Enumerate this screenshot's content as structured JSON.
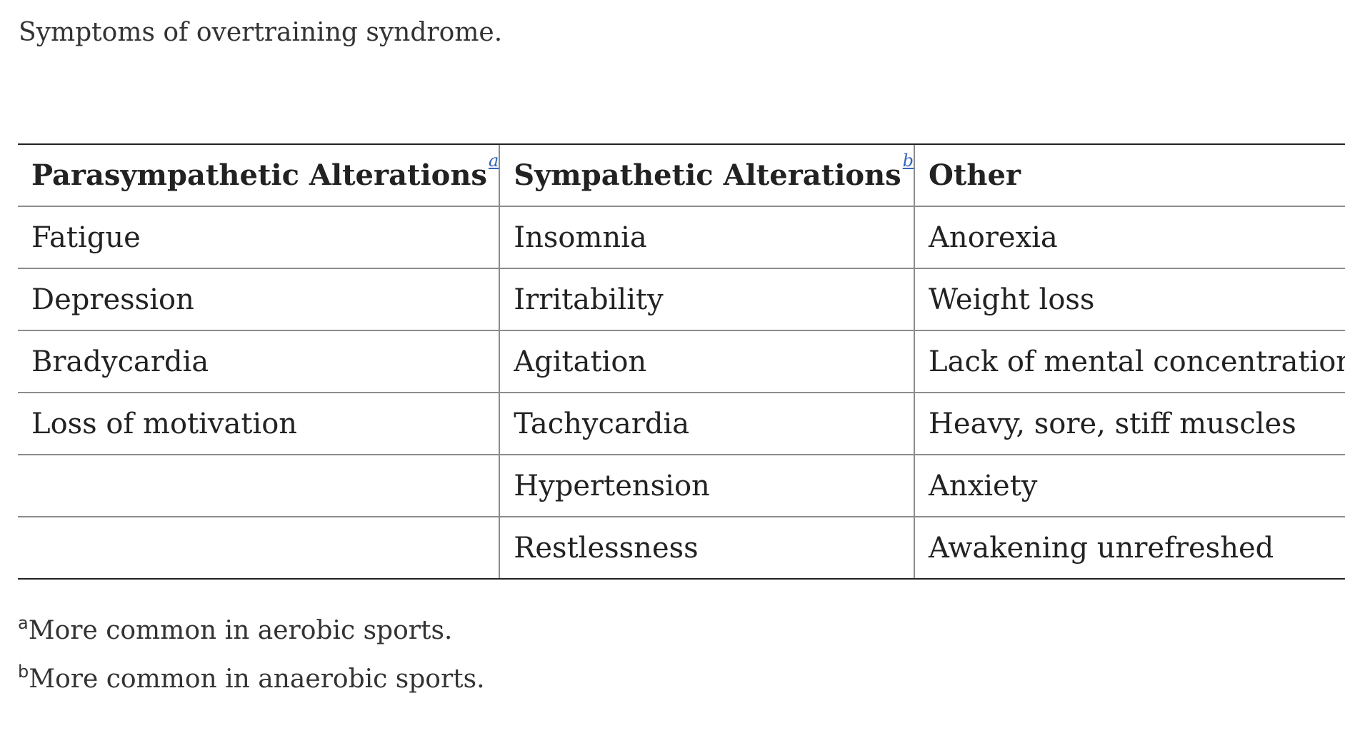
{
  "caption": "Symptoms of overtraining syndrome.",
  "table": {
    "headers": [
      {
        "label": "Parasympathetic Alterations",
        "footnote": "a"
      },
      {
        "label": "Sympathetic Alterations",
        "footnote": "b"
      },
      {
        "label": "Other",
        "footnote": null
      }
    ],
    "rows": [
      [
        "Fatigue",
        "Insomnia",
        "Anorexia"
      ],
      [
        "Depression",
        "Irritability",
        "Weight loss"
      ],
      [
        "Bradycardia",
        "Agitation",
        "Lack of mental concentration"
      ],
      [
        "Loss of motivation",
        "Tachycardia",
        "Heavy, sore, stiff muscles"
      ],
      [
        "",
        "Hypertension",
        "Anxiety"
      ],
      [
        "",
        "Restlessness",
        "Awakening unrefreshed"
      ]
    ]
  },
  "footnotes": [
    {
      "mark": "a",
      "text": "More common in aerobic sports."
    },
    {
      "mark": "b",
      "text": "More common in anaerobic sports."
    }
  ]
}
